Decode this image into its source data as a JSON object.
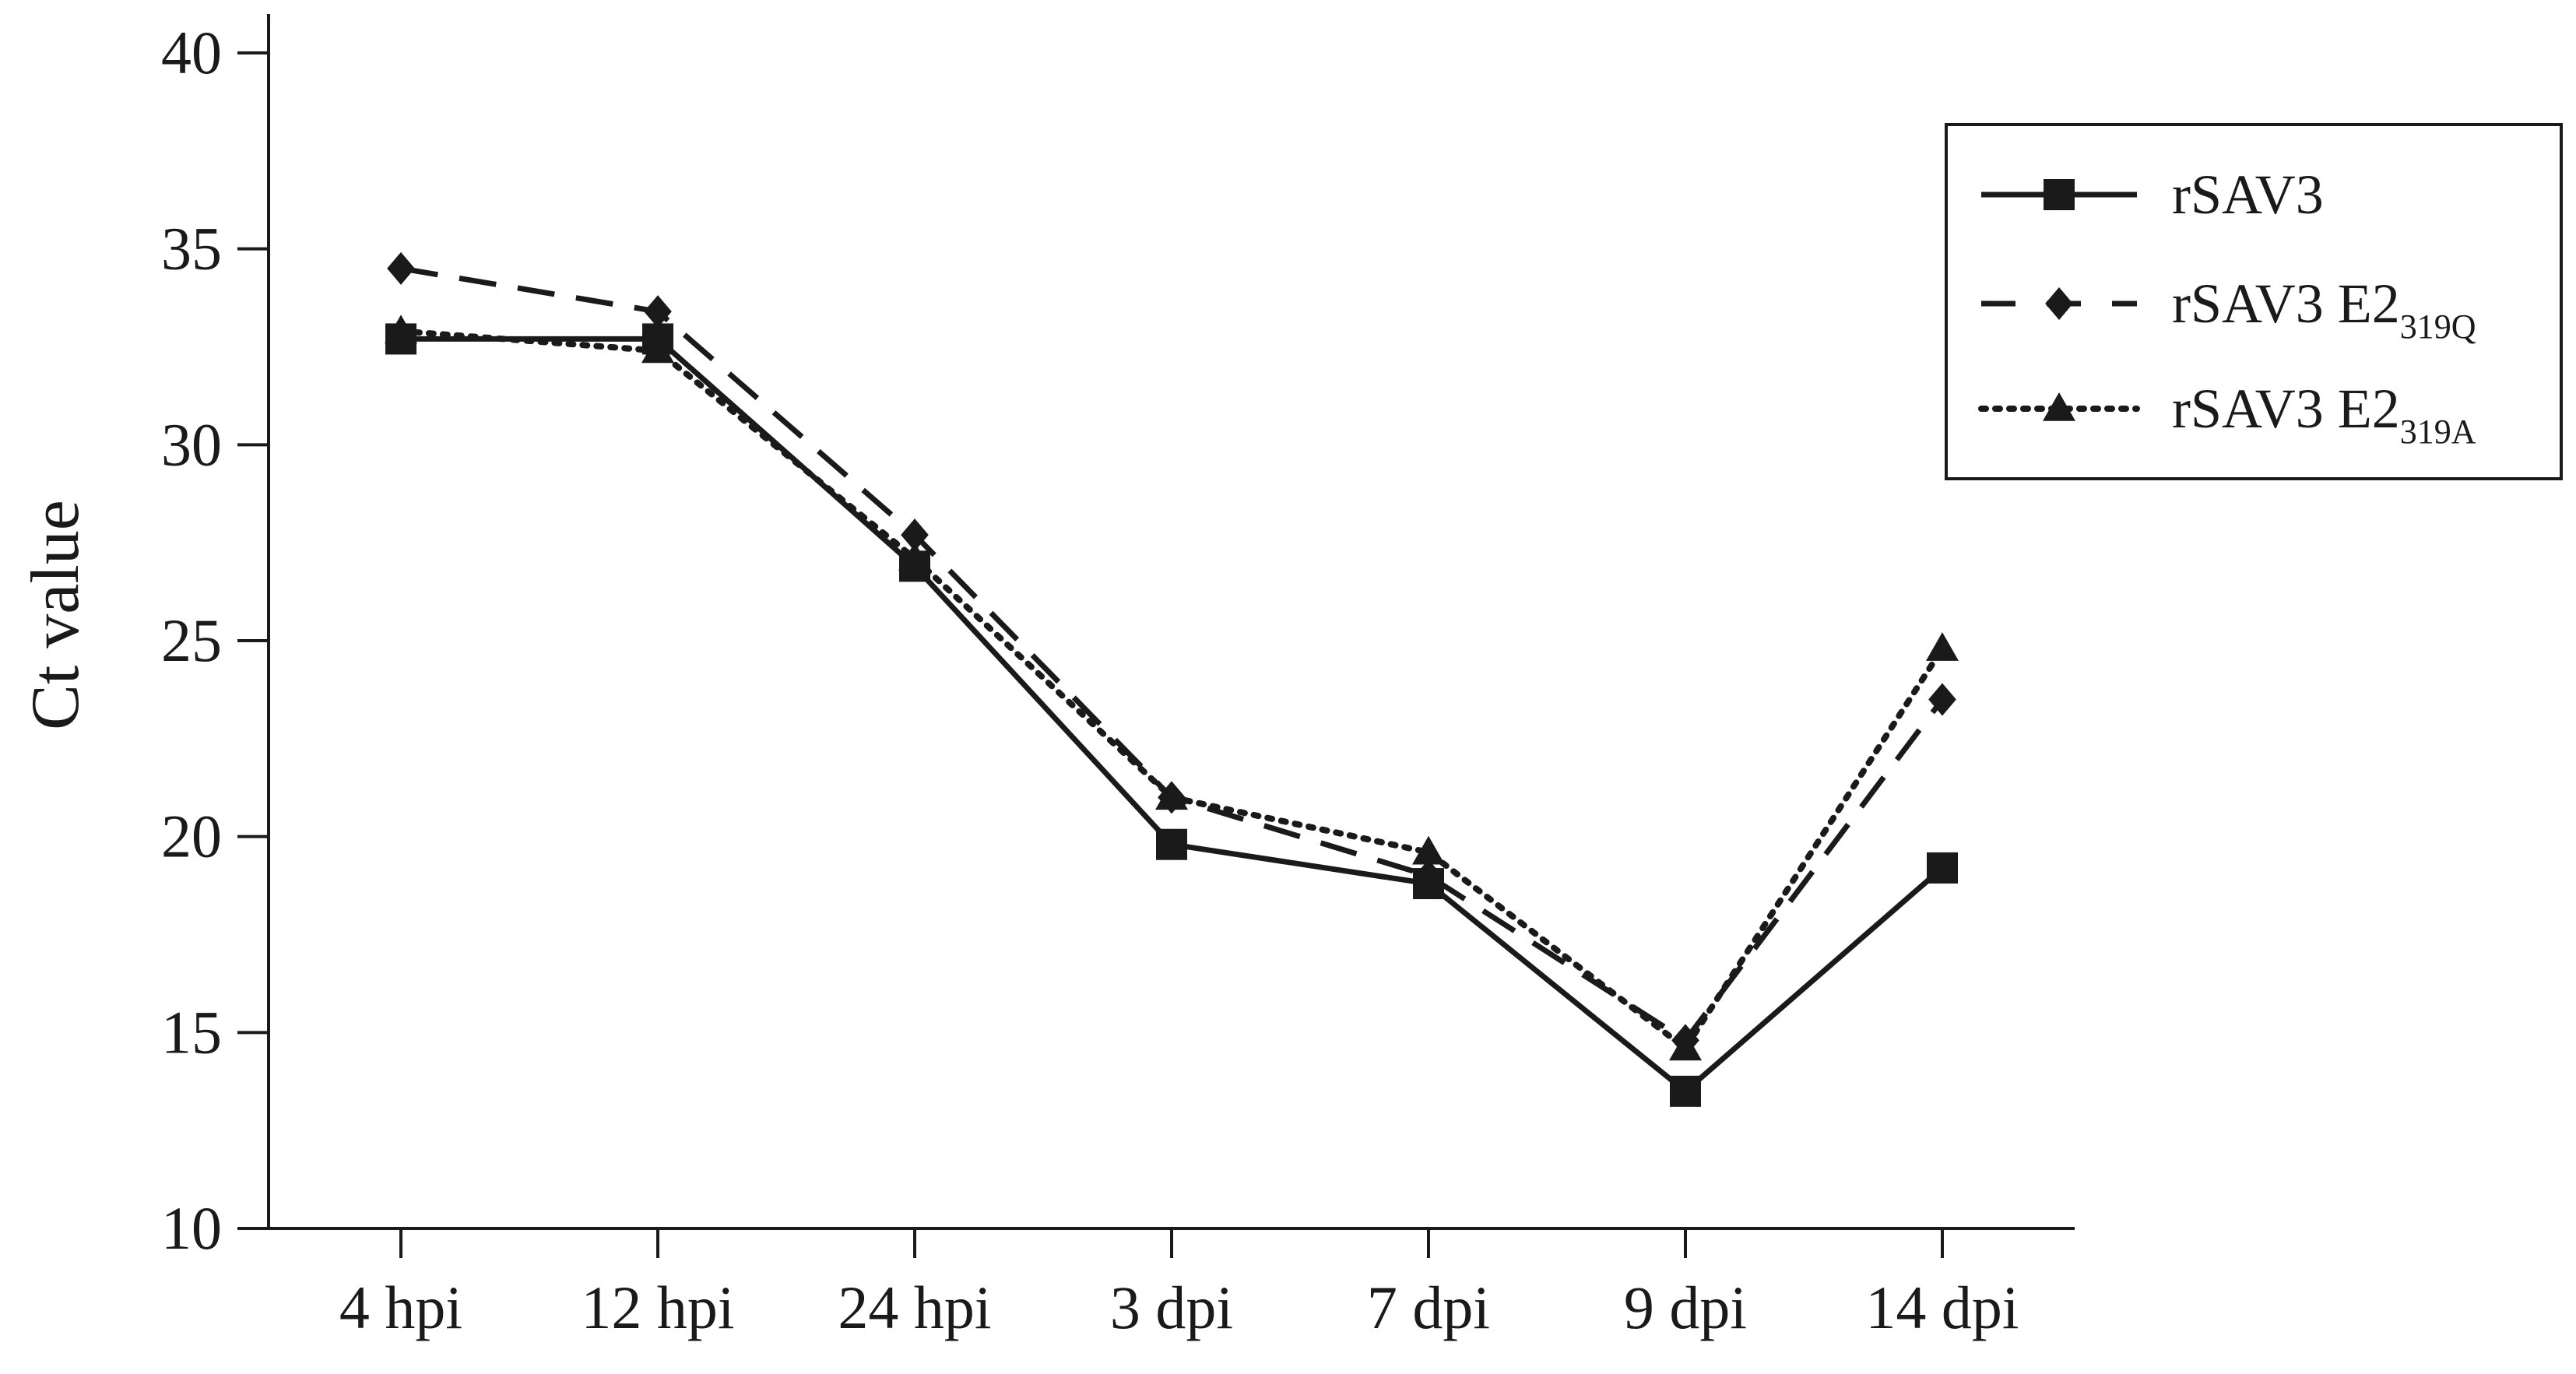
{
  "chart_data": {
    "type": "line",
    "title": "",
    "xlabel": "",
    "ylabel": "Ct value",
    "categories": [
      "4 hpi",
      "12 hpi",
      "24 hpi",
      "3 dpi",
      "7 dpi",
      "9 dpi",
      "14 dpi"
    ],
    "ylim": [
      10,
      40
    ],
    "yticks": [
      "10",
      "15",
      "20",
      "25",
      "30",
      "35",
      "40"
    ],
    "grid": false,
    "legend_position": "top-right",
    "series": [
      {
        "name": "rSAV3",
        "name_base": "rSAV3",
        "name_sub": "",
        "marker": "square",
        "line_style": "solid",
        "color": "#1a1a1a",
        "values": [
          32.7,
          32.7,
          26.9,
          19.8,
          18.8,
          13.5,
          19.2
        ]
      },
      {
        "name": "rSAV3 E2319Q",
        "name_base": "rSAV3 E2",
        "name_sub": "319Q",
        "marker": "diamond",
        "line_style": "dashed",
        "color": "#1a1a1a",
        "values": [
          34.5,
          33.4,
          27.7,
          21.0,
          19.0,
          14.8,
          23.5
        ]
      },
      {
        "name": "rSAV3 E2319A",
        "name_base": "rSAV3 E2",
        "name_sub": "319A",
        "marker": "triangle",
        "line_style": "dotted",
        "color": "#1a1a1a",
        "values": [
          32.9,
          32.4,
          27.1,
          21.0,
          19.6,
          14.6,
          24.8
        ]
      }
    ]
  }
}
